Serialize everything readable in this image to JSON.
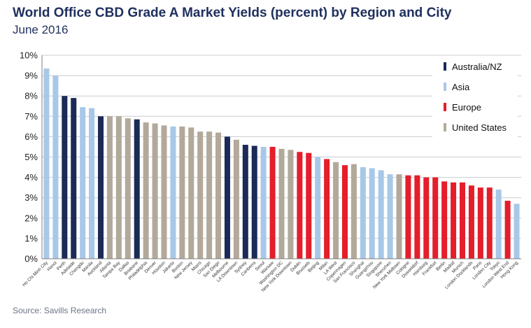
{
  "title": "World Office CBD Grade A Market Yields (percent) by Region and City",
  "subtitle": "June 2016",
  "source": "Source: Savills Research",
  "colors": {
    "Australia/NZ": "#1b2a56",
    "Asia": "#a8c8e8",
    "Europe": "#e41e2b",
    "United States": "#b3a99b"
  },
  "chart_data": {
    "type": "bar",
    "ylim": [
      0,
      10
    ],
    "yticks": [
      "0%",
      "1%",
      "2%",
      "3%",
      "4%",
      "5%",
      "6%",
      "7%",
      "8%",
      "9%",
      "10%"
    ],
    "grid": true,
    "legend_position": "top-right",
    "legend": [
      "Australia/NZ",
      "Asia",
      "Europe",
      "United States"
    ],
    "categories": [
      "Ho Chi Minh City",
      "Hanoi",
      "Perth",
      "Adelaide",
      "Chengdu",
      "Manila",
      "Auckland",
      "Atlanta",
      "Tampa Bay",
      "Dallas",
      "Brisbane",
      "Philadelphia",
      "Denver",
      "Houston",
      "Jakarta",
      "Boston",
      "New Jersey",
      "Miami",
      "Chicago",
      "San Diego",
      "Melbourne",
      "LA Downtown",
      "Sydney",
      "Canberra",
      "Seoul",
      "Warsaw",
      "Washington DC",
      "New York Downtown",
      "Dublin",
      "Brussels",
      "Beijing",
      "Milan",
      "LA West",
      "Copenhagen",
      "San Francisco",
      "Shanghai",
      "Guangzhou",
      "Singapore",
      "Shenzhen",
      "New York Midtown",
      "Cologne",
      "Dusseldorf",
      "Hamburg",
      "Frankfurt",
      "Berlin",
      "Madrid",
      "Munich",
      "London Docklands",
      "Paris",
      "London City",
      "Tokyo",
      "London West End",
      "Hong Kong"
    ],
    "values": [
      9.35,
      9.0,
      8.0,
      7.9,
      7.45,
      7.4,
      7.0,
      7.0,
      7.0,
      6.9,
      6.85,
      6.7,
      6.65,
      6.55,
      6.5,
      6.5,
      6.45,
      6.25,
      6.25,
      6.2,
      6.0,
      5.85,
      5.6,
      5.55,
      5.5,
      5.5,
      5.4,
      5.35,
      5.25,
      5.2,
      5.0,
      4.9,
      4.75,
      4.6,
      4.65,
      4.5,
      4.45,
      4.35,
      4.15,
      4.15,
      4.1,
      4.1,
      4.0,
      4.0,
      3.8,
      3.75,
      3.75,
      3.6,
      3.5,
      3.5,
      3.4,
      2.85,
      2.7
    ],
    "regions": [
      "Asia",
      "Asia",
      "Australia/NZ",
      "Australia/NZ",
      "Asia",
      "Asia",
      "Australia/NZ",
      "United States",
      "United States",
      "United States",
      "Australia/NZ",
      "United States",
      "United States",
      "United States",
      "Asia",
      "United States",
      "United States",
      "United States",
      "United States",
      "United States",
      "Australia/NZ",
      "United States",
      "Australia/NZ",
      "Australia/NZ",
      "Asia",
      "Europe",
      "United States",
      "United States",
      "Europe",
      "Europe",
      "Asia",
      "Europe",
      "United States",
      "Europe",
      "United States",
      "Asia",
      "Asia",
      "Asia",
      "Asia",
      "United States",
      "Europe",
      "Europe",
      "Europe",
      "Europe",
      "Europe",
      "Europe",
      "Europe",
      "Europe",
      "Europe",
      "Europe",
      "Asia",
      "Europe",
      "Asia"
    ]
  }
}
